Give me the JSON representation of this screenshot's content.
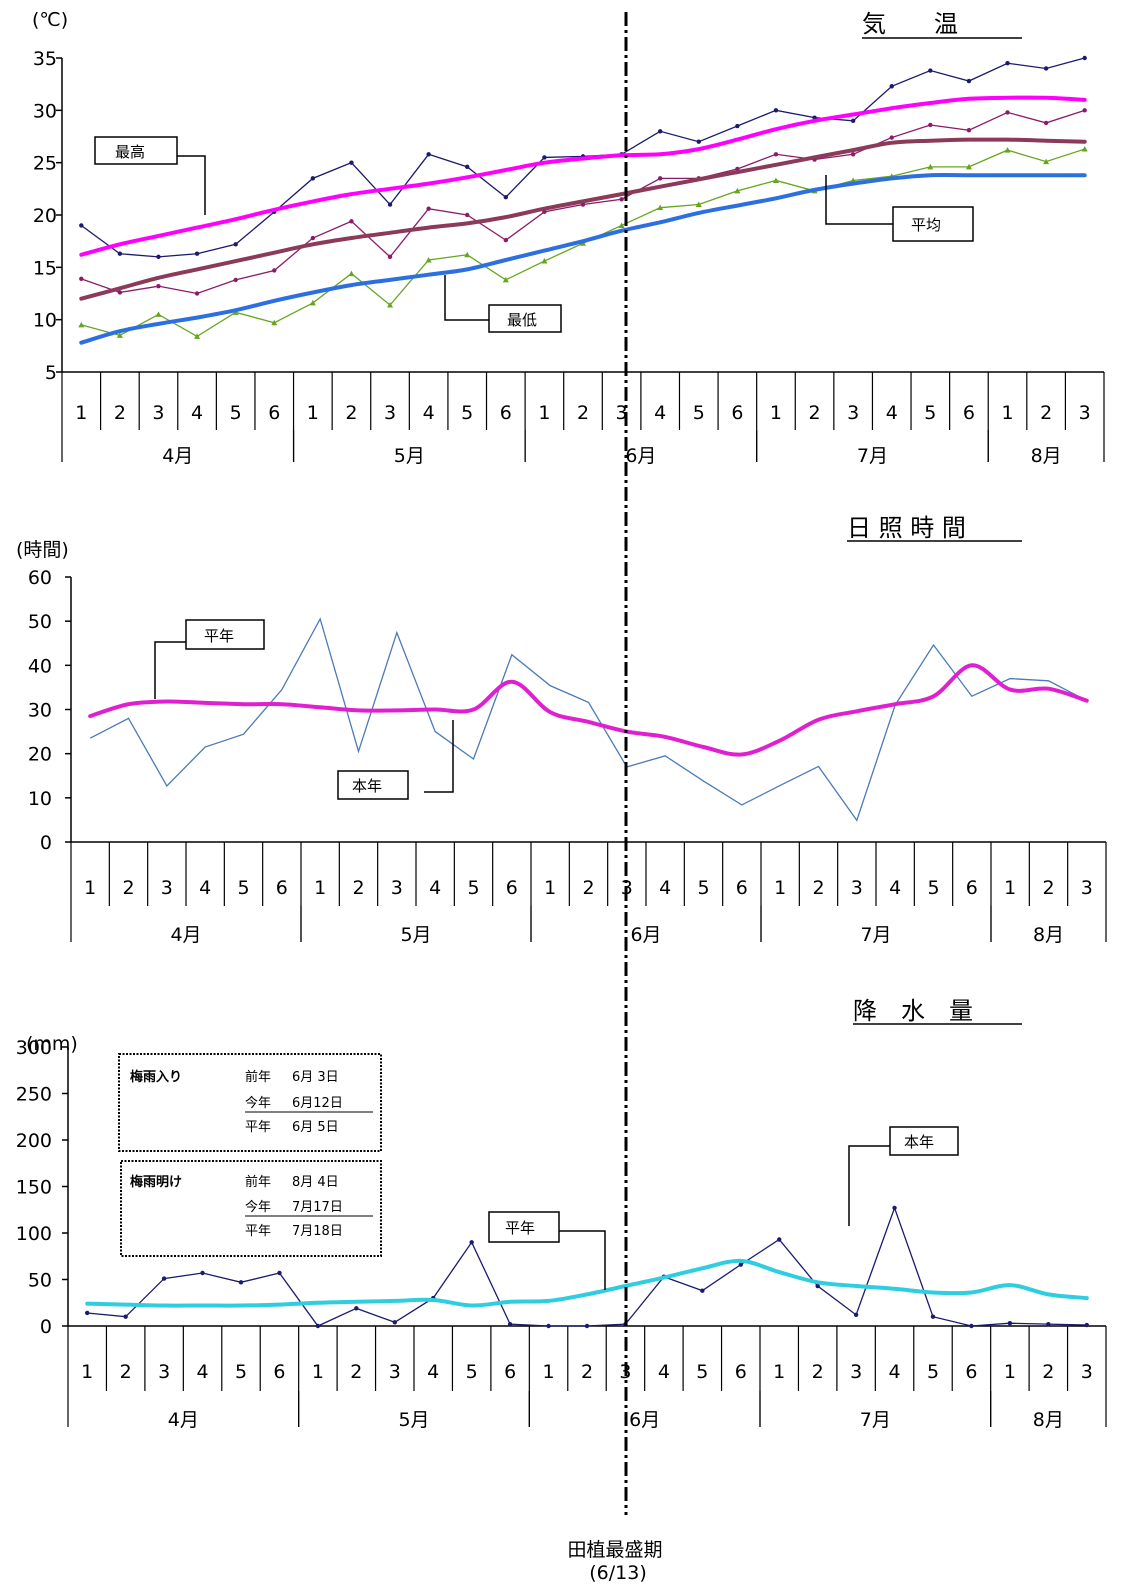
{
  "xaxis": {
    "periods": [
      "1",
      "2",
      "3",
      "4",
      "5",
      "6",
      "1",
      "2",
      "3",
      "4",
      "5",
      "6",
      "1",
      "2",
      "3",
      "4",
      "5",
      "6",
      "1",
      "2",
      "3",
      "4",
      "5",
      "6",
      "1",
      "2",
      "3"
    ],
    "months": [
      "4月",
      "5月",
      "6月",
      "7月",
      "8月"
    ]
  },
  "planting": {
    "label": "田植最盛期",
    "date": "(6/13)"
  },
  "chart_data": [
    {
      "type": "line",
      "title": "気　　温",
      "ylabel": "(℃)",
      "ylim": [
        5,
        35
      ],
      "yticks": [
        "5",
        "10",
        "15",
        "20",
        "25",
        "30",
        "35"
      ],
      "legend_labels": {
        "max": "最高",
        "mean": "平均",
        "min": "最低"
      },
      "series": [
        {
          "key": "max_this_year",
          "color": "#1a1a6e",
          "marker": "dot",
          "values": [
            19.0,
            16.3,
            16.0,
            16.3,
            17.2,
            20.3,
            23.5,
            25.0,
            21.0,
            25.8,
            24.6,
            21.7,
            25.5,
            25.6,
            25.8,
            28.0,
            27.0,
            28.5,
            30.0,
            29.3,
            29.0,
            32.3,
            33.8,
            32.8,
            34.5,
            34.0,
            35.0
          ]
        },
        {
          "key": "max_normal",
          "color": "#ff00ff",
          "marker": "none",
          "width": 4,
          "values": [
            16.2,
            17.2,
            18.0,
            18.8,
            19.6,
            20.5,
            21.3,
            22.0,
            22.5,
            23.0,
            23.6,
            24.3,
            25.0,
            25.4,
            25.7,
            25.8,
            26.3,
            27.2,
            28.2,
            29.0,
            29.6,
            30.2,
            30.7,
            31.1,
            31.2,
            31.2,
            31.0
          ]
        },
        {
          "key": "mean_this_year",
          "color": "#8b1a6b",
          "marker": "dot",
          "values": [
            13.9,
            12.6,
            13.2,
            12.5,
            13.8,
            14.7,
            17.8,
            19.4,
            16.0,
            20.6,
            20.0,
            17.6,
            20.3,
            21.0,
            21.5,
            23.5,
            23.5,
            24.4,
            25.8,
            25.3,
            25.8,
            27.4,
            28.6,
            28.1,
            29.8,
            28.8,
            30.0
          ]
        },
        {
          "key": "mean_normal",
          "color": "#8b3a5a",
          "marker": "none",
          "width": 4,
          "values": [
            12.0,
            13.0,
            14.0,
            14.8,
            15.6,
            16.4,
            17.2,
            17.8,
            18.3,
            18.8,
            19.2,
            19.8,
            20.6,
            21.3,
            22.0,
            22.7,
            23.4,
            24.1,
            24.8,
            25.5,
            26.2,
            26.9,
            27.1,
            27.2,
            27.2,
            27.1,
            27.0
          ]
        },
        {
          "key": "min_this_year",
          "color": "#66a61e",
          "marker": "triangle",
          "values": [
            9.5,
            8.5,
            10.5,
            8.4,
            10.7,
            9.7,
            11.6,
            14.4,
            11.4,
            15.7,
            16.2,
            13.8,
            15.6,
            17.3,
            19.0,
            20.7,
            21.0,
            22.3,
            23.3,
            22.3,
            23.3,
            23.7,
            24.6,
            24.6,
            26.2,
            25.1,
            26.3
          ]
        },
        {
          "key": "min_normal",
          "color": "#2b6fe0",
          "marker": "none",
          "width": 4,
          "values": [
            7.8,
            8.9,
            9.6,
            10.2,
            10.9,
            11.8,
            12.6,
            13.3,
            13.8,
            14.3,
            14.8,
            15.7,
            16.6,
            17.5,
            18.5,
            19.3,
            20.2,
            20.9,
            21.6,
            22.4,
            23.0,
            23.5,
            23.8,
            23.8,
            23.8,
            23.8,
            23.8
          ]
        }
      ]
    },
    {
      "type": "line",
      "title": "日 照 時 間",
      "ylabel": "(時間)",
      "ylim": [
        0,
        60
      ],
      "yticks": [
        "0",
        "10",
        "20",
        "30",
        "40",
        "50",
        "60"
      ],
      "legend_labels": {
        "normal": "平年",
        "this_year": "本年"
      },
      "series": [
        {
          "key": "this_year",
          "color": "#4a7ab8",
          "marker": "none",
          "values": [
            23.5,
            28.0,
            12.7,
            21.5,
            24.4,
            34.5,
            50.5,
            20.5,
            47.4,
            25.0,
            18.8,
            42.4,
            35.4,
            31.6,
            17.0,
            19.5,
            13.8,
            8.4,
            12.8,
            17.1,
            4.9,
            31.0,
            44.6,
            33.0,
            37.0,
            36.5,
            32.0
          ]
        },
        {
          "key": "normal",
          "color": "#e020d0",
          "marker": "none",
          "width": 4,
          "values": [
            28.5,
            31.2,
            31.8,
            31.5,
            31.2,
            31.2,
            30.5,
            29.8,
            29.8,
            30.0,
            30.0,
            36.3,
            29.4,
            27.2,
            25.0,
            23.8,
            21.5,
            19.8,
            23.0,
            27.7,
            29.6,
            31.2,
            33.0,
            40.0,
            34.5,
            34.7,
            32.0
          ]
        }
      ]
    },
    {
      "type": "line",
      "title": "降　水　量",
      "ylabel": "(mm)",
      "ylim": [
        0,
        300
      ],
      "yticks": [
        "0",
        "50",
        "100",
        "150",
        "200",
        "250",
        "300"
      ],
      "legend_labels": {
        "normal": "平年",
        "this_year": "本年"
      },
      "series": [
        {
          "key": "this_year",
          "color": "#1a1a6e",
          "marker": "dot",
          "values": [
            14,
            10,
            51,
            57,
            47,
            57,
            0,
            19,
            4,
            30,
            90,
            2,
            0,
            0,
            2,
            53,
            38,
            66,
            93,
            43,
            12,
            127,
            10,
            0,
            3,
            2,
            1
          ]
        },
        {
          "key": "normal",
          "color": "#2ecde0",
          "marker": "none",
          "width": 4,
          "values": [
            24,
            23,
            22,
            22,
            22,
            23,
            25,
            26,
            27,
            28,
            22,
            26,
            27,
            34,
            43,
            52,
            62,
            70,
            58,
            47,
            43,
            40,
            36,
            36,
            44,
            34,
            30
          ]
        }
      ]
    }
  ],
  "tsuyu": {
    "iri": {
      "label": "梅雨入り",
      "rows": [
        {
          "k": "前年",
          "v": "6月 3日"
        },
        {
          "k": "今年",
          "v": "6月12日"
        },
        {
          "k": "平年",
          "v": "6月 5日"
        }
      ]
    },
    "ake": {
      "label": "梅雨明け",
      "rows": [
        {
          "k": "前年",
          "v": "8月 4日"
        },
        {
          "k": "今年",
          "v": "7月17日"
        },
        {
          "k": "平年",
          "v": "7月18日"
        }
      ]
    }
  }
}
